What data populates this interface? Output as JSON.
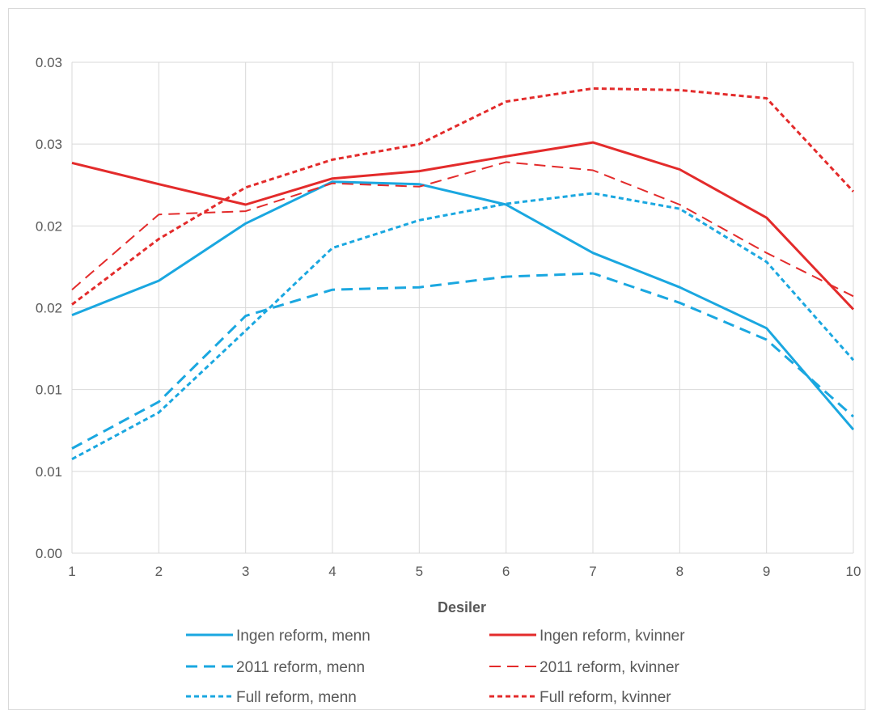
{
  "chart_data": {
    "type": "line",
    "title": "",
    "xlabel": "Desiler",
    "ylabel": "",
    "x": [
      1,
      2,
      3,
      4,
      5,
      6,
      7,
      8,
      9,
      10
    ],
    "xlim": [
      1,
      10
    ],
    "ylim": [
      0,
      0.03
    ],
    "y_ticks": [
      0,
      0.005,
      0.01,
      0.015,
      0.02,
      0.025,
      0.03
    ],
    "y_tick_labels": [
      "0.00",
      "0.01",
      "0.01",
      "0.02",
      "0.02",
      "0.03",
      "0.03"
    ],
    "grid": true,
    "legend_position": "bottom",
    "series": [
      {
        "name": "Ingen reform, menn",
        "color": "#1aa7e0",
        "dash": "solid",
        "values": [
          0.01455,
          0.01665,
          0.02015,
          0.0227,
          0.02255,
          0.0213,
          0.01835,
          0.01625,
          0.01375,
          0.00755
        ]
      },
      {
        "name": "Ingen reform, kvinner",
        "color": "#e32b2b",
        "dash": "solid",
        "values": [
          0.02385,
          0.02255,
          0.0213,
          0.0229,
          0.02335,
          0.02425,
          0.0251,
          0.02345,
          0.0205,
          0.0149
        ]
      },
      {
        "name": "2011 reform, menn",
        "color": "#1aa7e0",
        "dash": "long-dash",
        "values": [
          0.0064,
          0.00925,
          0.0145,
          0.0161,
          0.01625,
          0.0169,
          0.0171,
          0.0153,
          0.01305,
          0.00835
        ]
      },
      {
        "name": "2011 reform, kvinner",
        "color": "#e32b2b",
        "dash": "long-dash",
        "values": [
          0.0161,
          0.0207,
          0.0209,
          0.0226,
          0.0224,
          0.0239,
          0.0234,
          0.0213,
          0.01835,
          0.0157
        ]
      },
      {
        "name": "Full reform, menn",
        "color": "#1aa7e0",
        "dash": "short-dash",
        "values": [
          0.00575,
          0.0086,
          0.0136,
          0.01865,
          0.02035,
          0.02135,
          0.022,
          0.02105,
          0.0178,
          0.0118
        ]
      },
      {
        "name": "Full reform, kvinner",
        "color": "#e32b2b",
        "dash": "short-dash",
        "values": [
          0.0152,
          0.0192,
          0.02235,
          0.02405,
          0.025,
          0.0276,
          0.0284,
          0.0283,
          0.0278,
          0.0221
        ]
      }
    ]
  }
}
